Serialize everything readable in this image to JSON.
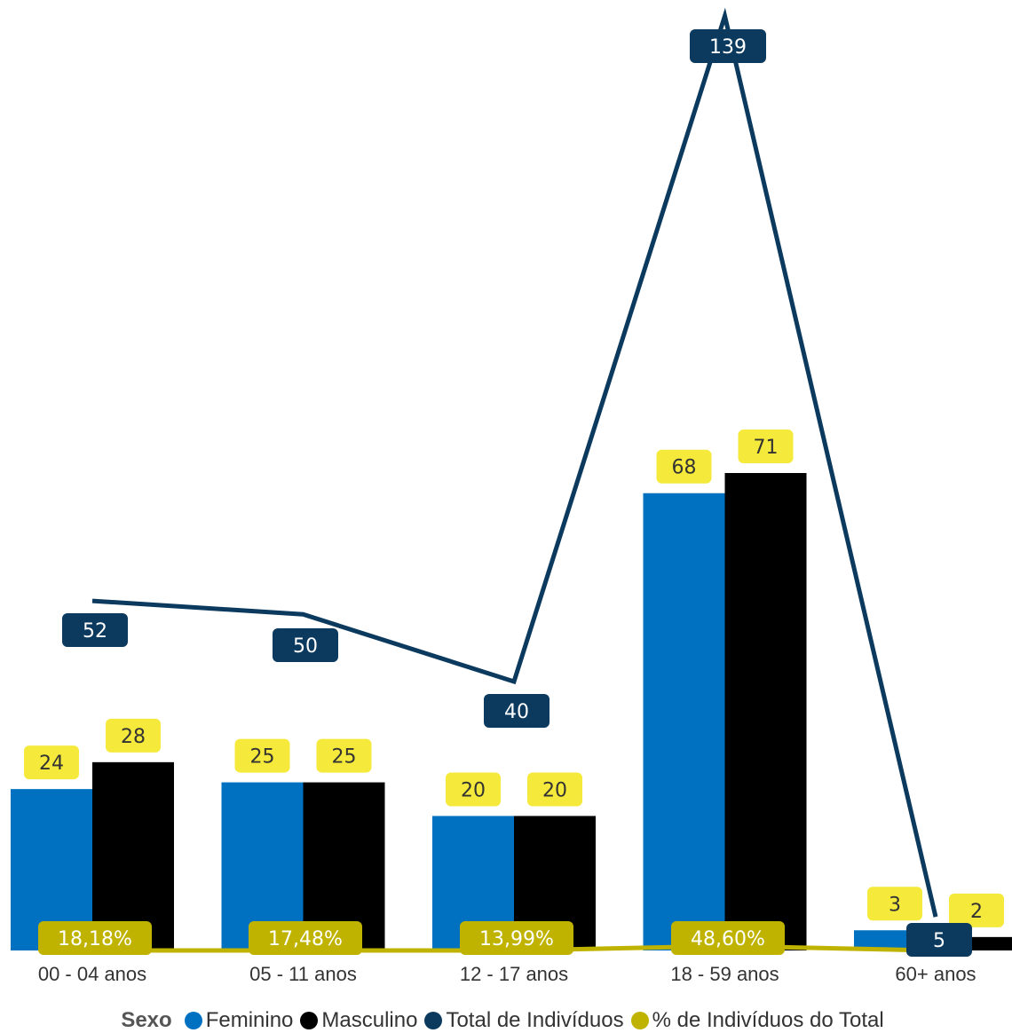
{
  "chart_data": {
    "type": "bar",
    "categories": [
      "00 - 04 anos",
      "05 - 11 anos",
      "12 - 17 anos",
      "18 - 59 anos",
      "60+ anos"
    ],
    "series": [
      {
        "name": "Feminino",
        "kind": "bar",
        "color": "#0070C0",
        "values": [
          24,
          25,
          20,
          68,
          3
        ],
        "labels": [
          "24",
          "25",
          "20",
          "68",
          "3"
        ]
      },
      {
        "name": "Masculino",
        "kind": "bar",
        "color": "#000000",
        "values": [
          28,
          25,
          20,
          71,
          2
        ],
        "labels": [
          "28",
          "25",
          "20",
          "71",
          "2"
        ]
      },
      {
        "name": "Total de Indivíduos",
        "kind": "line",
        "color": "#0C3A5E",
        "values": [
          52,
          50,
          40,
          139,
          5
        ],
        "labels": [
          "52",
          "50",
          "40",
          "139",
          "5"
        ]
      },
      {
        "name": "% de Indivíduos do Total",
        "kind": "line",
        "color": "#BFB300",
        "values": [
          18.18,
          17.48,
          13.99,
          48.6,
          1.75
        ],
        "labels": [
          "18,18%",
          "17,48%",
          "13,99%",
          "48,60%",
          ""
        ]
      }
    ],
    "legend_title": "Sexo",
    "legend_position": "bottom",
    "label_colors": {
      "bar_label_bg": "#F5EA3C",
      "pct_label_bg": "#BFB300"
    }
  }
}
